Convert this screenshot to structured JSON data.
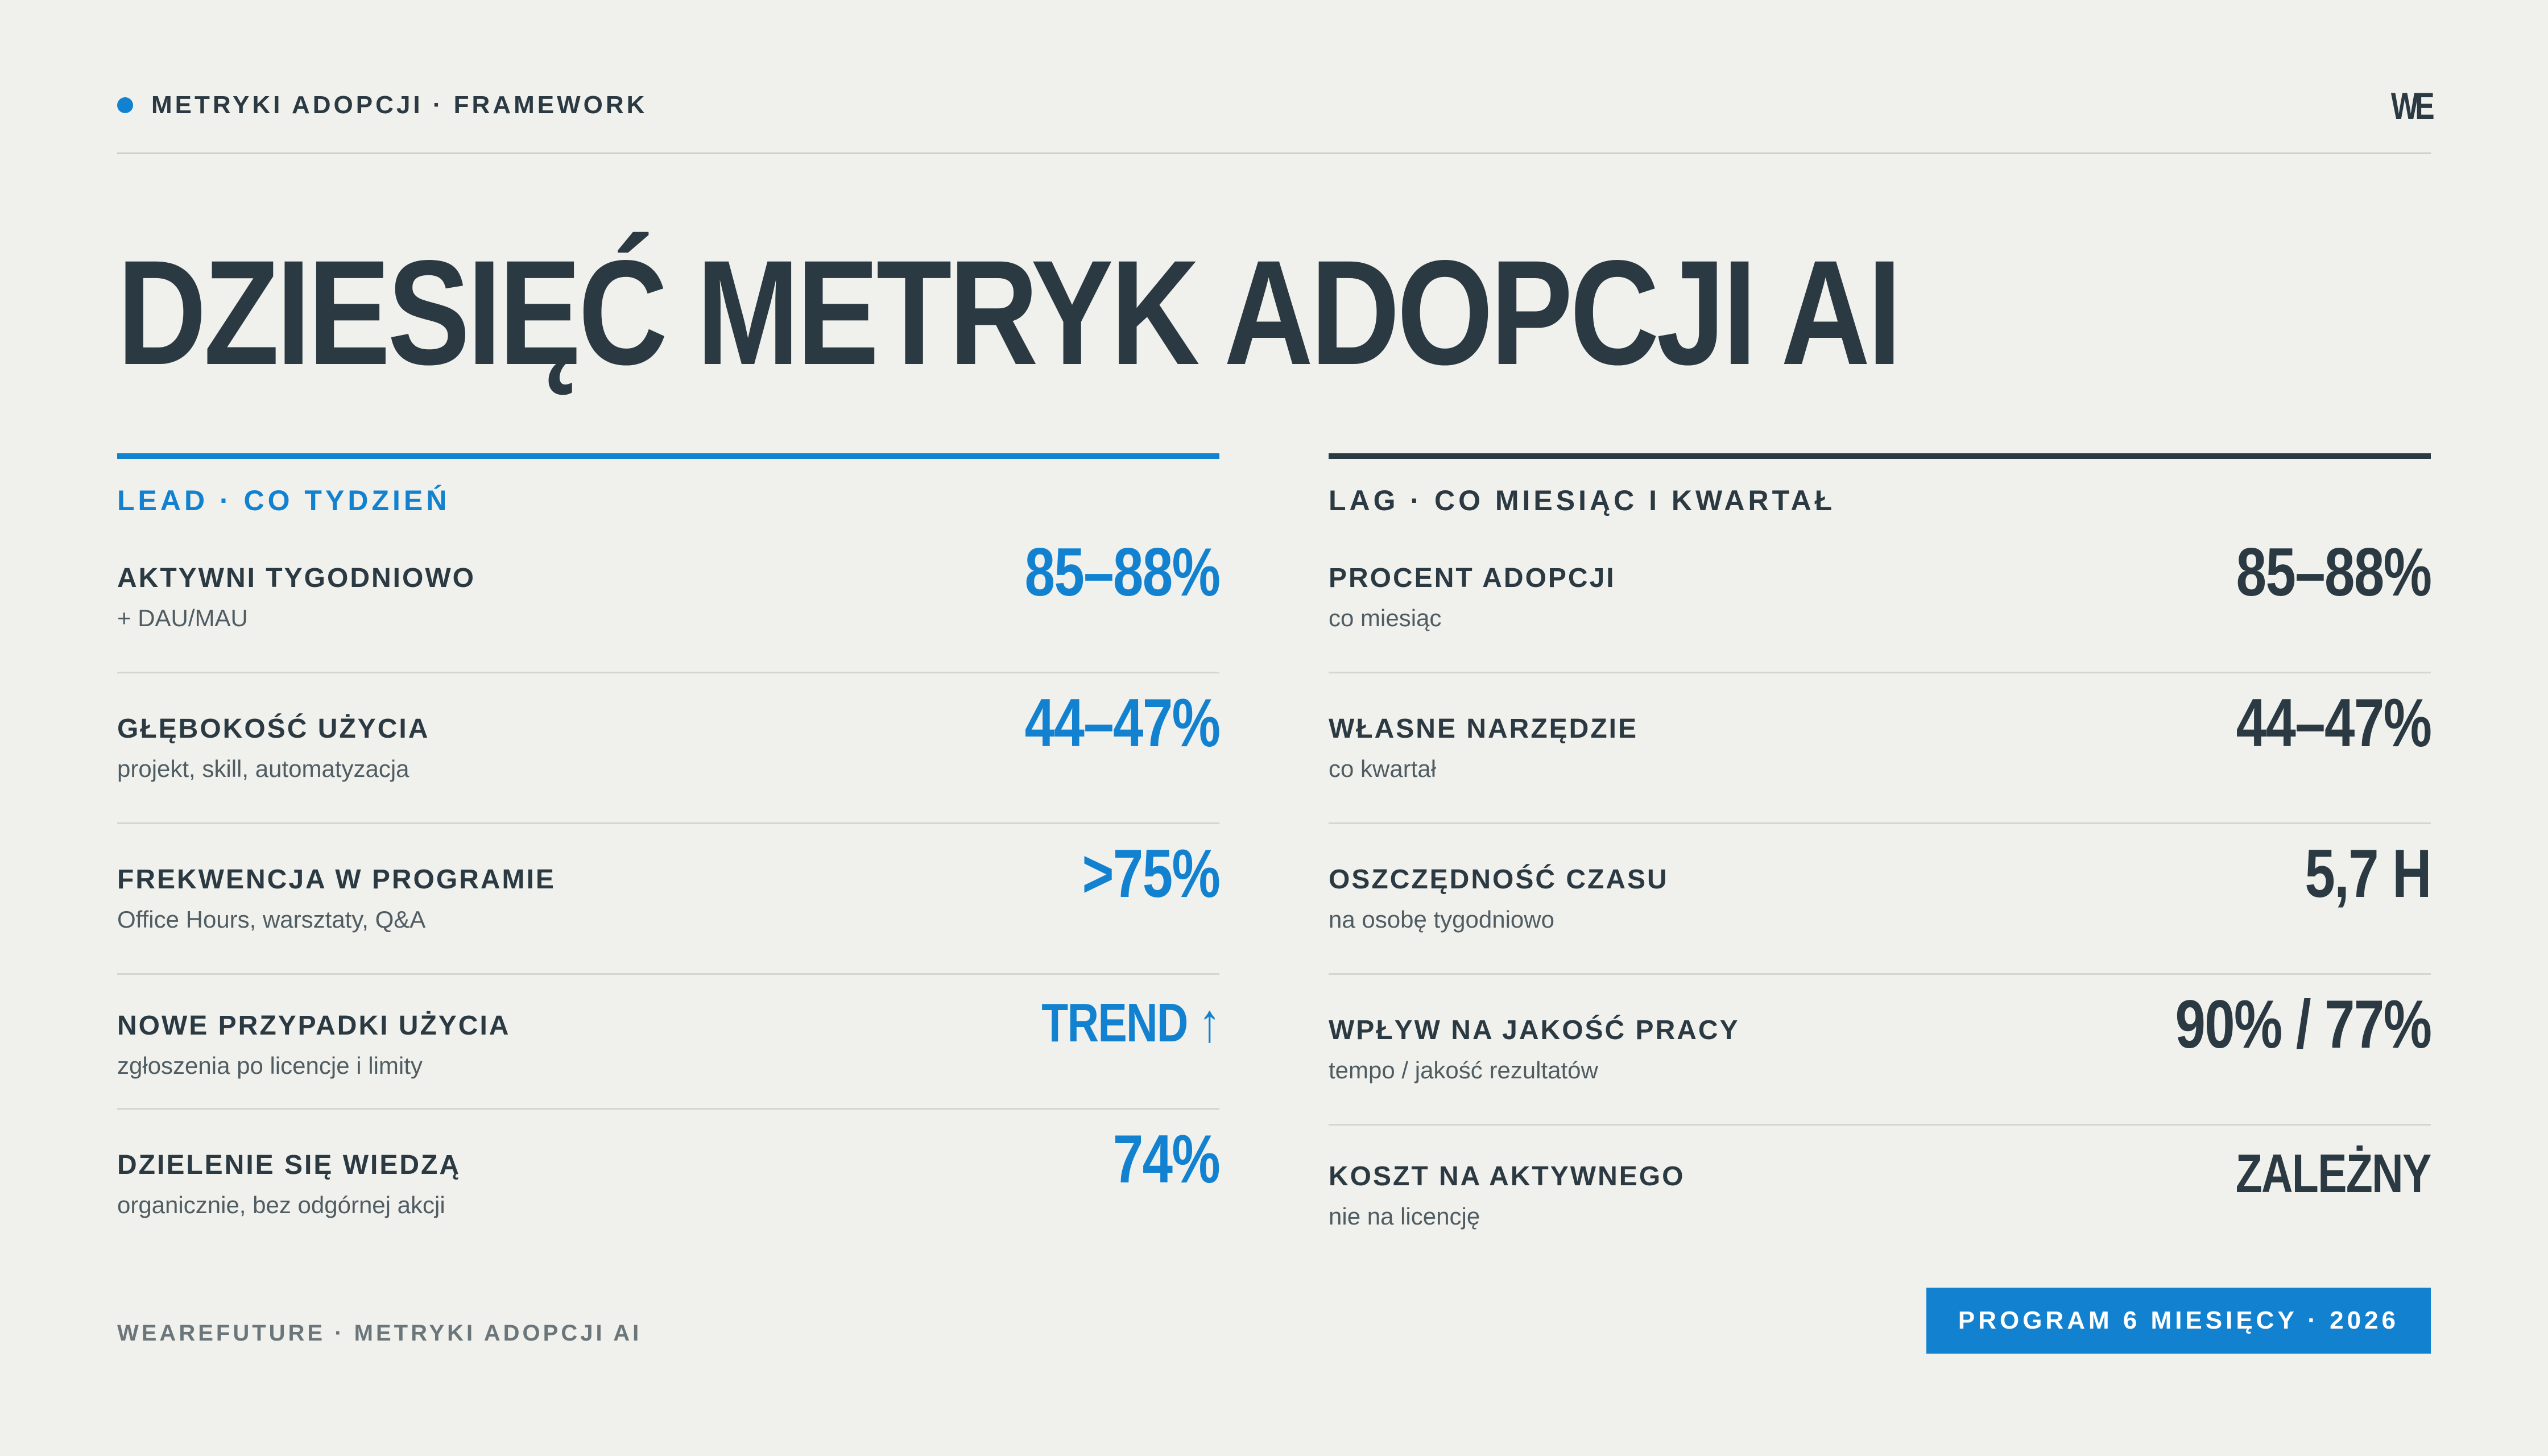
{
  "header": {
    "kicker": "METRYKI ADOPCJI · FRAMEWORK",
    "logo": "WE"
  },
  "title": "DZIESIĘĆ METRYK ADOPCJI AI",
  "lead": {
    "heading": "LEAD · CO TYDZIEŃ",
    "items": [
      {
        "label": "AKTYWNI TYGODNIOWO",
        "sub": "+ DAU/MAU",
        "value": "85–88%"
      },
      {
        "label": "GŁĘBOKOŚĆ UŻYCIA",
        "sub": "projekt, skill, automatyzacja",
        "value": "44–47%"
      },
      {
        "label": "FREKWENCJA W PROGRAMIE",
        "sub": "Office Hours, warsztaty, Q&A",
        "value": ">75%"
      },
      {
        "label": "NOWE PRZYPADKI UŻYCIA",
        "sub": "zgłoszenia po licencje i limity",
        "value": "TREND ↑"
      },
      {
        "label": "DZIELENIE SIĘ WIEDZĄ",
        "sub": "organicznie, bez odgórnej akcji",
        "value": "74%"
      }
    ]
  },
  "lag": {
    "heading": "LAG · CO MIESIĄC I KWARTAŁ",
    "items": [
      {
        "label": "PROCENT ADOPCJI",
        "sub": "co miesiąc",
        "value": "85–88%"
      },
      {
        "label": "WŁASNE NARZĘDZIE",
        "sub": "co kwartał",
        "value": "44–47%"
      },
      {
        "label": "OSZCZĘDNOŚĆ CZASU",
        "sub": "na osobę tygodniowo",
        "value": "5,7 H"
      },
      {
        "label": "WPŁYW NA JAKOŚĆ PRACY",
        "sub": "tempo / jakość rezultatów",
        "value": "90% / 77%"
      },
      {
        "label": "KOSZT NA AKTYWNEGO",
        "sub": "nie na licencję",
        "value": "ZALEŻNY"
      }
    ]
  },
  "footer": {
    "left": "WEAREFUTURE · METRYKI ADOPCJI AI",
    "badge": "PROGRAM 6 MIESIĘCY · 2026"
  },
  "colors": {
    "accent": "#1282d0",
    "ink": "#2b3a42",
    "background": "#f0f0ec"
  }
}
